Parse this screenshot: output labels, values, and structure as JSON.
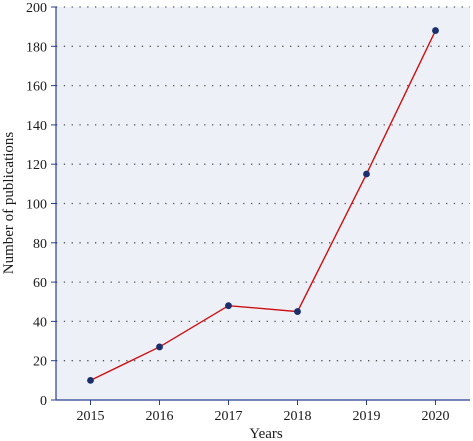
{
  "chart_data": {
    "type": "line",
    "title": "",
    "xlabel": "Years",
    "ylabel": "Number of publications",
    "categories": [
      "2015",
      "2016",
      "2017",
      "2018",
      "2019",
      "2020"
    ],
    "series": [
      {
        "values": [
          10,
          27,
          48,
          45,
          115,
          188
        ]
      }
    ],
    "ylim": [
      0,
      200
    ],
    "yticks": [
      0,
      20,
      40,
      60,
      80,
      100,
      120,
      140,
      160,
      180,
      200
    ],
    "grid": "horizontal dotted",
    "colors": {
      "plot_background": "#eef0f8",
      "line": "#cc1111",
      "marker": "#1a2f6b",
      "axis": "#2a3f8f",
      "grid": "#555555"
    }
  }
}
